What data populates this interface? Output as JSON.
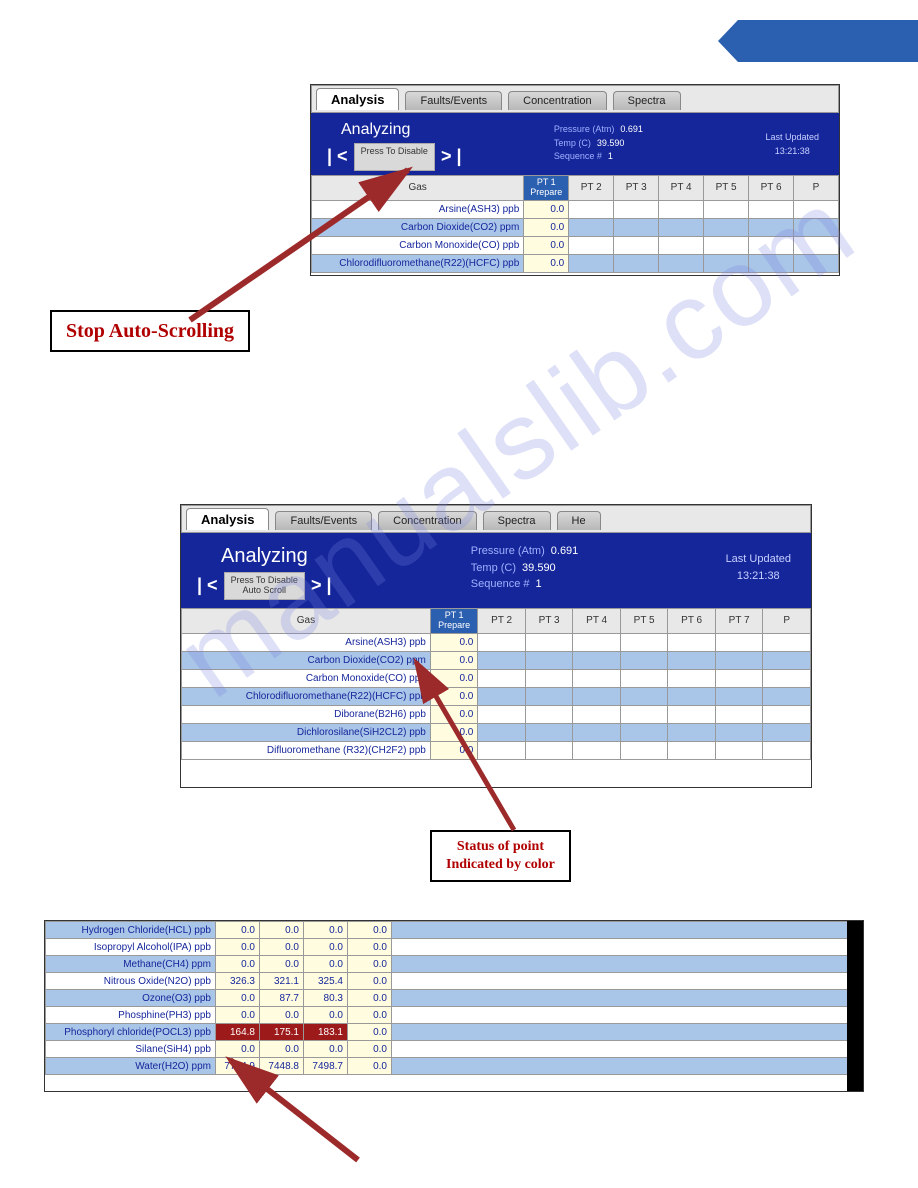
{
  "banner_color": "#2b5fb0",
  "watermark_text": "manualslib.com",
  "tabs": {
    "analysis": "Analysis",
    "faults": "Faults/Events",
    "concentration": "Concentration",
    "spectra": "Spectra",
    "extra": "He"
  },
  "panel": {
    "title": "Analyzing",
    "press_line1": "Press To Disable",
    "press_line2": "Auto Scroll",
    "prev": "| <",
    "next": "> |",
    "pressure_label": "Pressure (Atm)",
    "pressure_val": "0.691",
    "temp_label": "Temp (C)",
    "temp_val": "39.590",
    "seq_label": "Sequence  #",
    "seq_val": "1",
    "updated_label": "Last Updated",
    "updated_val": "13:21:38"
  },
  "headers": {
    "gas": "Gas",
    "pt1_label": "PT 1",
    "pt1_status": "Prepare",
    "pt2": "PT 2",
    "pt3": "PT 3",
    "pt4": "PT 4",
    "pt5": "PT 5",
    "pt6": "PT 6",
    "pt7": "PT 7",
    "pt8": "P"
  },
  "shot1_rows": [
    {
      "gas": "Arsine(ASH3) ppb",
      "v": "0.0",
      "striped": false
    },
    {
      "gas": "Carbon Dioxide(CO2) ppm",
      "v": "0.0",
      "striped": true
    },
    {
      "gas": "Carbon Monoxide(CO) ppb",
      "v": "0.0",
      "striped": false
    },
    {
      "gas": "Chlorodifluoromethane(R22)(HCFC) ppb",
      "v": "0.0",
      "striped": true
    }
  ],
  "shot2_rows": [
    {
      "gas": "Arsine(ASH3) ppb",
      "v": "0.0",
      "striped": false
    },
    {
      "gas": "Carbon Dioxide(CO2) ppm",
      "v": "0.0",
      "striped": true
    },
    {
      "gas": "Carbon Monoxide(CO) ppb",
      "v": "0.0",
      "striped": false
    },
    {
      "gas": "Chlorodifluoromethane(R22)(HCFC) ppb",
      "v": "0.0",
      "striped": true
    },
    {
      "gas": "Diborane(B2H6) ppb",
      "v": "0.0",
      "striped": false
    },
    {
      "gas": "Dichlorosilane(SiH2CL2) ppb",
      "v": "0.0",
      "striped": true
    },
    {
      "gas": "Difluoromethane (R32)(CH2F2) ppb",
      "v": "0.0",
      "striped": false
    }
  ],
  "shot3_rows": [
    {
      "gas": "Hydrogen Chloride(HCL) ppb",
      "vals": [
        "0.0",
        "0.0",
        "0.0",
        "0.0"
      ],
      "striped": true,
      "alarm": false
    },
    {
      "gas": "Isopropyl Alcohol(IPA) ppb",
      "vals": [
        "0.0",
        "0.0",
        "0.0",
        "0.0"
      ],
      "striped": false,
      "alarm": false
    },
    {
      "gas": "Methane(CH4) ppm",
      "vals": [
        "0.0",
        "0.0",
        "0.0",
        "0.0"
      ],
      "striped": true,
      "alarm": false
    },
    {
      "gas": "Nitrous Oxide(N2O) ppb",
      "vals": [
        "326.3",
        "321.1",
        "325.4",
        "0.0"
      ],
      "striped": false,
      "alarm": false
    },
    {
      "gas": "Ozone(O3) ppb",
      "vals": [
        "0.0",
        "87.7",
        "80.3",
        "0.0"
      ],
      "striped": true,
      "alarm": false
    },
    {
      "gas": "Phosphine(PH3) ppb",
      "vals": [
        "0.0",
        "0.0",
        "0.0",
        "0.0"
      ],
      "striped": false,
      "alarm": false
    },
    {
      "gas": "Phosphoryl chloride(POCL3) ppb",
      "vals": [
        "164.8",
        "175.1",
        "183.1",
        "0.0"
      ],
      "striped": true,
      "alarm": true
    },
    {
      "gas": "Silane(SiH4) ppb",
      "vals": [
        "0.0",
        "0.0",
        "0.0",
        "0.0"
      ],
      "striped": false,
      "alarm": false
    },
    {
      "gas": "Water(H2O) ppm",
      "vals": [
        "7774.9",
        "7448.8",
        "7498.7",
        "0.0"
      ],
      "striped": true,
      "alarm": false
    }
  ],
  "callouts": {
    "c1": "Stop Auto-Scrolling",
    "c2_l1": "Status of point",
    "c2_l2": "Indicated by color"
  },
  "colors": {
    "navy": "#15269b",
    "stripe": "#a9c5e8",
    "highlight_pt": "#2b5fb0",
    "alarm": "#9c1a1a",
    "valcell": "#fffce0"
  }
}
